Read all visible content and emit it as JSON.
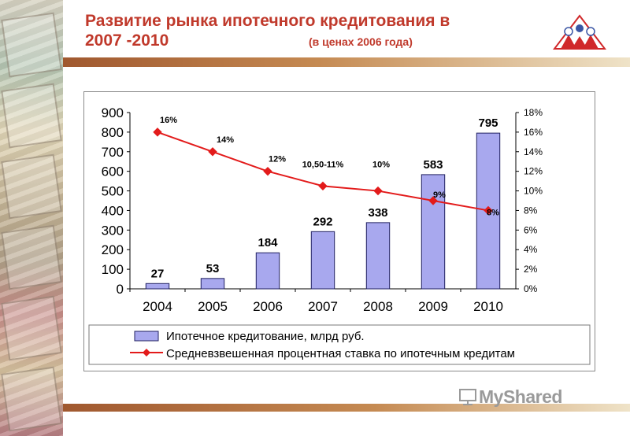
{
  "header": {
    "title_line1": "Развитие рынка ипотечного кредитования в",
    "title_line2": "2007 -2010",
    "subtitle": "(в ценах 2006 года)"
  },
  "watermark": {
    "text": "MyShared"
  },
  "colors": {
    "title": "#c0392b",
    "bar_fill": "#a8a8ee",
    "bar_stroke": "#202060",
    "line": "#e31b1b",
    "marker": "#e31b1b"
  },
  "chart_data": {
    "type": "bar",
    "categories": [
      "2004",
      "2005",
      "2006",
      "2007",
      "2008",
      "2009",
      "2010"
    ],
    "ylim": [
      0,
      900
    ],
    "y_ticks": [
      "0",
      "100",
      "200",
      "300",
      "400",
      "500",
      "600",
      "700",
      "800",
      "900"
    ],
    "y2lim": [
      0,
      18
    ],
    "y2_ticks": [
      "0%",
      "2%",
      "4%",
      "6%",
      "8%",
      "10%",
      "12%",
      "14%",
      "16%",
      "18%"
    ],
    "grid": false,
    "legend_position": "bottom",
    "series": [
      {
        "name": "Ипотечное кредитование, млрд руб.",
        "type": "bar",
        "axis": "left",
        "values": [
          27,
          53,
          184,
          292,
          338,
          583,
          795
        ],
        "labels": [
          "27",
          "53",
          "184",
          "292",
          "338",
          "583",
          "795"
        ]
      },
      {
        "name": "Средневзвешенная процентная ставка по ипотечным кредитам",
        "type": "line",
        "axis": "right",
        "values": [
          16,
          14,
          12,
          10.5,
          10,
          9,
          8
        ],
        "labels": [
          "16%",
          "14%",
          "12%",
          "10,50-11%",
          "10%",
          "9%",
          "8%"
        ]
      }
    ]
  }
}
